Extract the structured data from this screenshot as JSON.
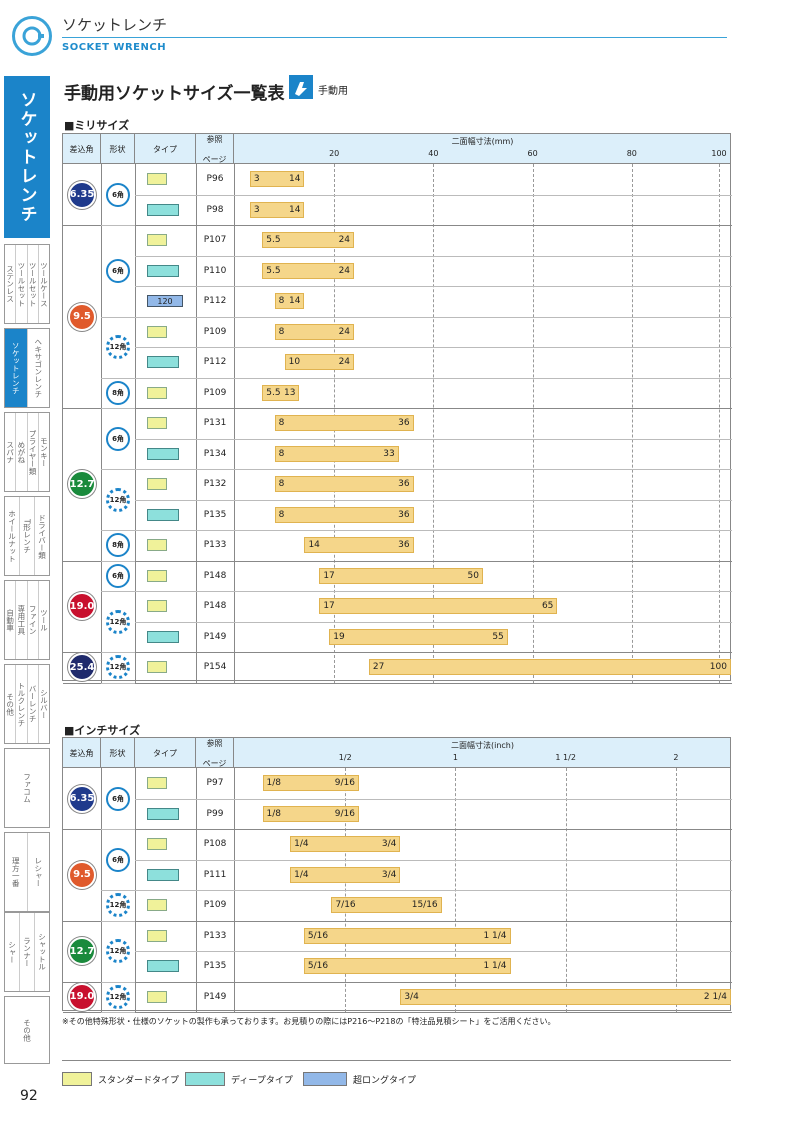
{
  "header": {
    "title_jp": "ソケットレンチ",
    "title_en": "SOCKET WRENCH"
  },
  "sidebar": {
    "active": "ソケットレンチ",
    "tabs": [
      [
        "ステンレス",
        "ツールセット"
      ],
      [
        "ツールセット",
        "ツールケース"
      ],
      [
        "ソケットレンチ",
        "ヘキサゴンレンチ"
      ],
      [
        "スパナ",
        "めがね"
      ],
      [
        "プライヤー類",
        "モンキー"
      ],
      [
        "ホイールナット",
        "T形レンチ"
      ],
      [
        "ドライバー類"
      ],
      [
        "自動車",
        "専用工具"
      ],
      [
        "ファイン",
        "ツール"
      ],
      [
        "その他",
        "トルクレンチ"
      ],
      [
        "バーレンチ",
        "シルバー"
      ],
      [
        "ファコム"
      ],
      [
        "理方一番",
        "レシャー"
      ],
      [
        "シャー",
        "ランナー"
      ],
      [
        "シャットル"
      ],
      [
        "その他"
      ]
    ]
  },
  "title": "手動用ソケットサイズ一覧表",
  "title_tag": "手動用",
  "metric": {
    "section": "■ミリサイズ",
    "head": {
      "col1": "差込角",
      "col2": "形状",
      "col3": "タイプ",
      "col4a": "参照",
      "col4b": "ページ",
      "scale_title": "二面幅寸法(mm)",
      "ticks": [
        "20",
        "40",
        "60",
        "80",
        "100"
      ]
    },
    "rows": [
      {
        "ref": "P96",
        "from": "3",
        "to": "14"
      },
      {
        "ref": "P98",
        "from": "3",
        "to": "14"
      },
      {
        "ref": "P107",
        "from": "5.5",
        "to": "24"
      },
      {
        "ref": "P110",
        "from": "5.5",
        "to": "24"
      },
      {
        "ref": "P112",
        "from": "8",
        "to": "14",
        "long_label": "120"
      },
      {
        "ref": "P109",
        "from": "8",
        "to": "24"
      },
      {
        "ref": "P112",
        "from": "10",
        "to": "24"
      },
      {
        "ref": "P109",
        "from": "5.5",
        "to": "13"
      },
      {
        "ref": "P131",
        "from": "8",
        "to": "36"
      },
      {
        "ref": "P134",
        "from": "8",
        "to": "33"
      },
      {
        "ref": "P132",
        "from": "8",
        "to": "36"
      },
      {
        "ref": "P135",
        "from": "8",
        "to": "36"
      },
      {
        "ref": "P133",
        "from": "14",
        "to": "36"
      },
      {
        "ref": "P148",
        "from": "17",
        "to": "50"
      },
      {
        "ref": "P148",
        "from": "17",
        "to": "65"
      },
      {
        "ref": "P149",
        "from": "19",
        "to": "55"
      },
      {
        "ref": "P154",
        "from": "27",
        "to": "100"
      }
    ],
    "drives": [
      "6.35",
      "9.5",
      "12.7",
      "19.0",
      "25.4"
    ],
    "shapes": {
      "hex": "6角",
      "dodeca": "12角",
      "octa": "8角"
    }
  },
  "inch": {
    "section": "■インチサイズ",
    "head": {
      "col1": "差込角",
      "col2": "形状",
      "col3": "タイプ",
      "col4a": "参照",
      "col4b": "ページ",
      "scale_title": "二面幅寸法(inch)",
      "ticks": [
        "1/2",
        "1",
        "1 1/2",
        "2"
      ]
    },
    "rows": [
      {
        "ref": "P97",
        "from": "1/8",
        "to": "9/16"
      },
      {
        "ref": "P99",
        "from": "1/8",
        "to": "9/16"
      },
      {
        "ref": "P108",
        "from": "1/4",
        "to": "3/4"
      },
      {
        "ref": "P111",
        "from": "1/4",
        "to": "3/4"
      },
      {
        "ref": "P109",
        "from": "7/16",
        "to": "15/16"
      },
      {
        "ref": "P133",
        "from": "5/16",
        "to": "1 1/4"
      },
      {
        "ref": "P135",
        "from": "5/16",
        "to": "1 1/4"
      },
      {
        "ref": "P149",
        "from": "3/4",
        "to": "2 1/4"
      }
    ],
    "drives": [
      "6.35",
      "9.5",
      "12.7",
      "19.0"
    ],
    "shapes": {
      "hex": "6角",
      "dodeca": "12角"
    }
  },
  "note": "※その他特殊形状・仕様のソケットの製作も承っております。お見積りの際にはP216〜P218の「特注品見積シート」をご活用ください。",
  "legend": {
    "std": "スタンダードタイプ",
    "deep": "ディープタイプ",
    "long": "超ロングタイプ"
  },
  "page_number": "92",
  "colors": {
    "accent": "#1b84c9",
    "bar": "#f5d68a",
    "std": "#f0f29a",
    "deep": "#8de0dc",
    "long": "#92b8e8"
  }
}
